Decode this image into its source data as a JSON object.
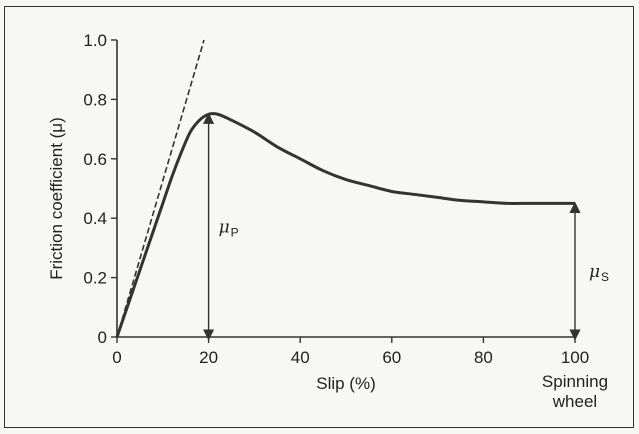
{
  "chart_data": {
    "type": "line",
    "xlabel": "Slip (%)",
    "ylabel": "Friction coefficient  (μ)",
    "xlim": [
      0,
      100
    ],
    "ylim": [
      0,
      1.0
    ],
    "x_ticks": [
      "0",
      "20",
      "40",
      "60",
      "80",
      "100"
    ],
    "x_tick_extra": "Spinning\nwheel",
    "y_ticks": [
      "0",
      "0.2",
      "0.4",
      "0.6",
      "0.8",
      "1.0"
    ],
    "series": [
      {
        "x": [
          0,
          2,
          4,
          6,
          8,
          10,
          12,
          14,
          16,
          18,
          20,
          22,
          25,
          30,
          35,
          40,
          45,
          50,
          55,
          60,
          65,
          70,
          75,
          80,
          85,
          90,
          95,
          100
        ],
        "y": [
          0.0,
          0.09,
          0.18,
          0.27,
          0.36,
          0.45,
          0.54,
          0.62,
          0.69,
          0.73,
          0.75,
          0.75,
          0.73,
          0.69,
          0.64,
          0.6,
          0.56,
          0.53,
          0.51,
          0.49,
          0.48,
          0.47,
          0.46,
          0.455,
          0.45,
          0.45,
          0.45,
          0.45
        ]
      }
    ],
    "tangent_line": {
      "x": [
        0,
        19
      ],
      "y": [
        0.0,
        1.0
      ],
      "style": "dashed"
    },
    "annotations": [
      {
        "label": "μ",
        "subscript": "P",
        "x": 20,
        "y_from": 0,
        "y_to": 0.75
      },
      {
        "label": "μ",
        "subscript": "S",
        "x": 100,
        "y_from": 0,
        "y_to": 0.45
      }
    ],
    "color": "#333333"
  }
}
